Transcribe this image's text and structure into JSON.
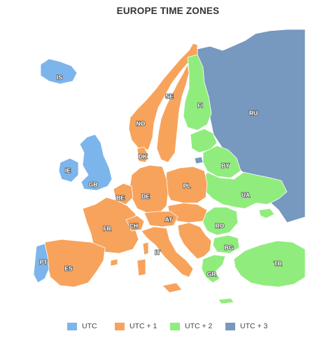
{
  "map": {
    "title": "EUROPE TIME ZONES",
    "zones": [
      {
        "key": "utc",
        "label": "UTC",
        "color": "#7cb5ec"
      },
      {
        "key": "utc1",
        "label": "UTC + 1",
        "color": "#f7a35c"
      },
      {
        "key": "utc2",
        "label": "UTC + 2",
        "color": "#90ed7d"
      },
      {
        "key": "utc3",
        "label": "UTC + 3",
        "color": "#7798bf"
      }
    ],
    "countries": [
      {
        "code": "IS",
        "zone": "utc"
      },
      {
        "code": "IE",
        "zone": "utc"
      },
      {
        "code": "GB",
        "zone": "utc"
      },
      {
        "code": "PT",
        "zone": "utc"
      },
      {
        "code": "NO",
        "zone": "utc1"
      },
      {
        "code": "SE",
        "zone": "utc1"
      },
      {
        "code": "DK",
        "zone": "utc1"
      },
      {
        "code": "BE",
        "zone": "utc1"
      },
      {
        "code": "DE",
        "zone": "utc1"
      },
      {
        "code": "PL",
        "zone": "utc1"
      },
      {
        "code": "FR",
        "zone": "utc1"
      },
      {
        "code": "CH",
        "zone": "utc1"
      },
      {
        "code": "AT",
        "zone": "utc1"
      },
      {
        "code": "IT",
        "zone": "utc1"
      },
      {
        "code": "ES",
        "zone": "utc1"
      },
      {
        "code": "FI",
        "zone": "utc2"
      },
      {
        "code": "BY",
        "zone": "utc2"
      },
      {
        "code": "UA",
        "zone": "utc2"
      },
      {
        "code": "RO",
        "zone": "utc2"
      },
      {
        "code": "BG",
        "zone": "utc2"
      },
      {
        "code": "GR",
        "zone": "utc2"
      },
      {
        "code": "TR",
        "zone": "utc2"
      },
      {
        "code": "RU",
        "zone": "utc3"
      }
    ]
  }
}
